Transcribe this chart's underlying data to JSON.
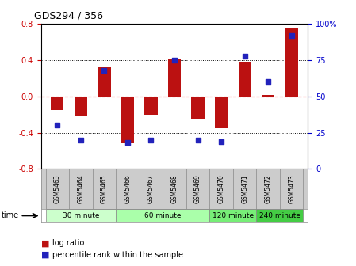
{
  "title": "GDS294 / 356",
  "samples": [
    "GSM5463",
    "GSM5464",
    "GSM5465",
    "GSM5466",
    "GSM5467",
    "GSM5468",
    "GSM5469",
    "GSM5470",
    "GSM5471",
    "GSM5472",
    "GSM5473"
  ],
  "log_ratio": [
    -0.15,
    -0.22,
    0.32,
    -0.52,
    -0.2,
    0.42,
    -0.25,
    -0.35,
    0.38,
    0.02,
    0.76
  ],
  "percentile": [
    30,
    20,
    68,
    18,
    20,
    75,
    20,
    19,
    78,
    60,
    92
  ],
  "groups": [
    {
      "label": "30 minute",
      "start": 0,
      "end": 2
    },
    {
      "label": "60 minute",
      "start": 3,
      "end": 6
    },
    {
      "label": "120 minute",
      "start": 7,
      "end": 8
    },
    {
      "label": "240 minute",
      "start": 9,
      "end": 10
    }
  ],
  "group_colors": [
    "#ccffcc",
    "#aaffaa",
    "#77ee77",
    "#44cc44"
  ],
  "bar_color": "#bb1111",
  "dot_color": "#2222bb",
  "ylim_left": [
    -0.8,
    0.8
  ],
  "ylim_right": [
    0,
    100
  ],
  "yticks_left": [
    -0.8,
    -0.4,
    0.0,
    0.4,
    0.8
  ],
  "yticks_right": [
    0,
    25,
    50,
    75,
    100
  ],
  "hlines": [
    -0.4,
    0.0,
    0.4
  ],
  "hline_colors": [
    "black",
    "red",
    "black"
  ],
  "hline_styles": [
    "dotted",
    "dashed",
    "dotted"
  ],
  "bar_width": 0.55,
  "legend_ratio_label": "log ratio",
  "legend_pct_label": "percentile rank within the sample",
  "tick_label_color_left": "#cc0000",
  "tick_label_color_right": "#0000cc",
  "sample_row_color": "#cccccc",
  "sample_row_border": "#888888"
}
